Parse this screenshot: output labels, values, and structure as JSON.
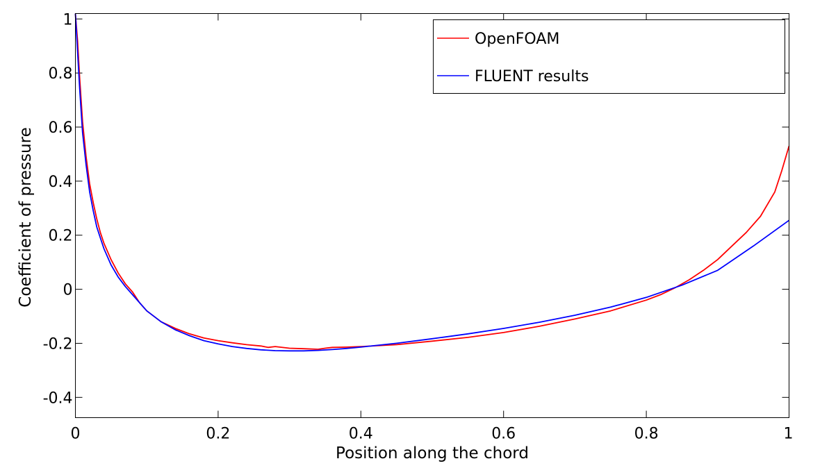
{
  "chart_data": {
    "type": "line",
    "title": "",
    "xlabel": "Position along the chord",
    "ylabel": "Coefficient of pressure",
    "xlim": [
      0,
      1
    ],
    "ylim": [
      -0.475,
      1.02
    ],
    "xticks": [
      0,
      0.2,
      0.4,
      0.6,
      0.8,
      1
    ],
    "xtick_labels": [
      "0",
      "0.2",
      "0.4",
      "0.6",
      "0.8",
      "1"
    ],
    "yticks": [
      -0.4,
      -0.2,
      0,
      0.2,
      0.4,
      0.6,
      0.8,
      1
    ],
    "ytick_labels": [
      "-0.4",
      "-0.2",
      "0",
      "0.2",
      "0.4",
      "0.6",
      "0.8",
      "1"
    ],
    "grid": false,
    "legend_position": "top-right",
    "series": [
      {
        "name": "OpenFOAM",
        "color": "#ff0000",
        "x": [
          0,
          0.003,
          0.006,
          0.01,
          0.015,
          0.02,
          0.025,
          0.03,
          0.035,
          0.04,
          0.05,
          0.06,
          0.07,
          0.08,
          0.09,
          0.1,
          0.12,
          0.14,
          0.16,
          0.18,
          0.2,
          0.22,
          0.24,
          0.26,
          0.27,
          0.28,
          0.3,
          0.32,
          0.34,
          0.35,
          0.36,
          0.38,
          0.4,
          0.45,
          0.5,
          0.55,
          0.6,
          0.65,
          0.7,
          0.75,
          0.8,
          0.82,
          0.84,
          0.86,
          0.88,
          0.9,
          0.92,
          0.94,
          0.96,
          0.98,
          0.99,
          1.0
        ],
        "y": [
          1.02,
          0.92,
          0.78,
          0.62,
          0.49,
          0.39,
          0.32,
          0.26,
          0.21,
          0.17,
          0.11,
          0.06,
          0.02,
          -0.01,
          -0.05,
          -0.08,
          -0.12,
          -0.145,
          -0.165,
          -0.18,
          -0.19,
          -0.198,
          -0.205,
          -0.21,
          -0.215,
          -0.212,
          -0.218,
          -0.22,
          -0.222,
          -0.218,
          -0.215,
          -0.214,
          -0.212,
          -0.205,
          -0.192,
          -0.178,
          -0.16,
          -0.137,
          -0.11,
          -0.08,
          -0.04,
          -0.02,
          0.005,
          0.035,
          0.07,
          0.11,
          0.16,
          0.21,
          0.27,
          0.36,
          0.44,
          0.53
        ]
      },
      {
        "name": "FLUENT results",
        "color": "#0000ff",
        "x": [
          0,
          0.003,
          0.006,
          0.01,
          0.015,
          0.02,
          0.025,
          0.03,
          0.035,
          0.04,
          0.05,
          0.06,
          0.07,
          0.08,
          0.09,
          0.1,
          0.12,
          0.14,
          0.16,
          0.18,
          0.2,
          0.22,
          0.24,
          0.26,
          0.28,
          0.3,
          0.32,
          0.34,
          0.36,
          0.38,
          0.4,
          0.45,
          0.5,
          0.55,
          0.6,
          0.65,
          0.7,
          0.75,
          0.8,
          0.85,
          0.9,
          0.95,
          1.0
        ],
        "y": [
          1.02,
          0.88,
          0.74,
          0.58,
          0.46,
          0.36,
          0.29,
          0.23,
          0.19,
          0.15,
          0.09,
          0.045,
          0.01,
          -0.02,
          -0.05,
          -0.08,
          -0.12,
          -0.15,
          -0.172,
          -0.19,
          -0.202,
          -0.212,
          -0.219,
          -0.224,
          -0.227,
          -0.228,
          -0.228,
          -0.226,
          -0.223,
          -0.219,
          -0.214,
          -0.2,
          -0.183,
          -0.165,
          -0.145,
          -0.122,
          -0.096,
          -0.066,
          -0.03,
          0.015,
          0.07,
          0.16,
          0.255
        ]
      }
    ]
  }
}
